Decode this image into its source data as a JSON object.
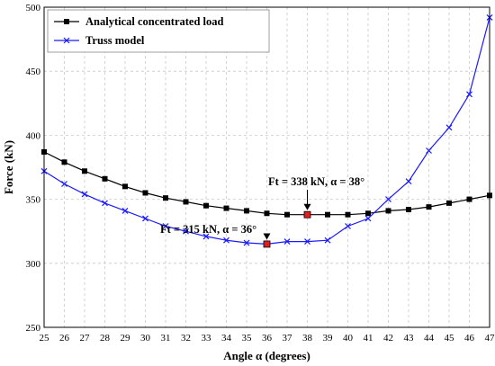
{
  "chart_data": {
    "type": "line",
    "title": "",
    "xlabel": "Angle α (degrees)",
    "ylabel": "Force (kN)",
    "xlim": [
      25,
      47
    ],
    "ylim": [
      250,
      500
    ],
    "x_ticks": [
      25,
      26,
      27,
      28,
      29,
      30,
      31,
      32,
      33,
      34,
      35,
      36,
      37,
      38,
      39,
      40,
      41,
      42,
      43,
      44,
      45,
      46,
      47
    ],
    "y_ticks": [
      250,
      300,
      350,
      400,
      450,
      500
    ],
    "grid": true,
    "legend_position": "top-left",
    "x": [
      25,
      26,
      27,
      28,
      29,
      30,
      31,
      32,
      33,
      34,
      35,
      36,
      37,
      38,
      39,
      40,
      41,
      42,
      43,
      44,
      45,
      46,
      47
    ],
    "series": [
      {
        "name": "Analytical concentrated load",
        "color": "#000000",
        "marker": "square",
        "values": [
          387,
          379,
          372,
          366,
          360,
          355,
          351,
          348,
          345,
          343,
          341,
          339,
          338,
          338,
          338,
          338,
          339,
          341,
          342,
          344,
          347,
          350,
          353
        ]
      },
      {
        "name": "Truss model",
        "color": "#1a1aff",
        "marker": "x",
        "values": [
          372,
          362,
          354,
          347,
          341,
          335,
          329,
          325,
          321,
          318,
          316,
          315,
          317,
          317,
          318,
          329,
          335,
          350,
          364,
          388,
          406,
          432,
          492
        ]
      }
    ],
    "highlights": [
      {
        "x": 36,
        "y": 315,
        "color": "#e02020"
      },
      {
        "x": 38,
        "y": 338,
        "color": "#e02020"
      }
    ],
    "annotations": [
      {
        "text": "Ft = 315 kN, α = 36°",
        "target_x": 36,
        "target_y": 315
      },
      {
        "text": "Ft = 338 kN, α = 38°",
        "target_x": 38,
        "target_y": 338
      }
    ]
  }
}
